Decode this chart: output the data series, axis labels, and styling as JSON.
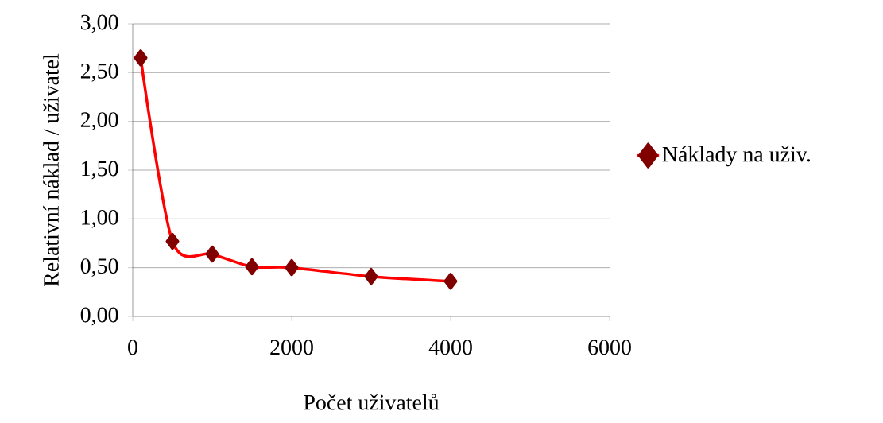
{
  "chart_data": {
    "type": "line",
    "xlabel": "Počet uživatelů",
    "ylabel": "Relativní náklad / uživatel",
    "x": [
      100,
      500,
      1000,
      1500,
      2000,
      3000,
      4000
    ],
    "series": [
      {
        "name": "Náklady na uživ.",
        "color": "#ff0000",
        "values": [
          2.65,
          0.77,
          0.64,
          0.51,
          0.5,
          0.41,
          0.36
        ]
      }
    ],
    "xlim": [
      0,
      6000
    ],
    "xticks": [
      0,
      2000,
      4000,
      6000
    ],
    "ylim": [
      0,
      3
    ],
    "yticks": [
      {
        "value": 0,
        "label": "0,00"
      },
      {
        "value": 0.5,
        "label": "0,50"
      },
      {
        "value": 1,
        "label": "1,00"
      },
      {
        "value": 1.5,
        "label": "1,50"
      },
      {
        "value": 2,
        "label": "2,00"
      },
      {
        "value": 2.5,
        "label": "2,50"
      },
      {
        "value": 3,
        "label": "3,00"
      }
    ],
    "grid": "y",
    "legend": "right",
    "marker": "diamond",
    "line_style": "solid"
  }
}
